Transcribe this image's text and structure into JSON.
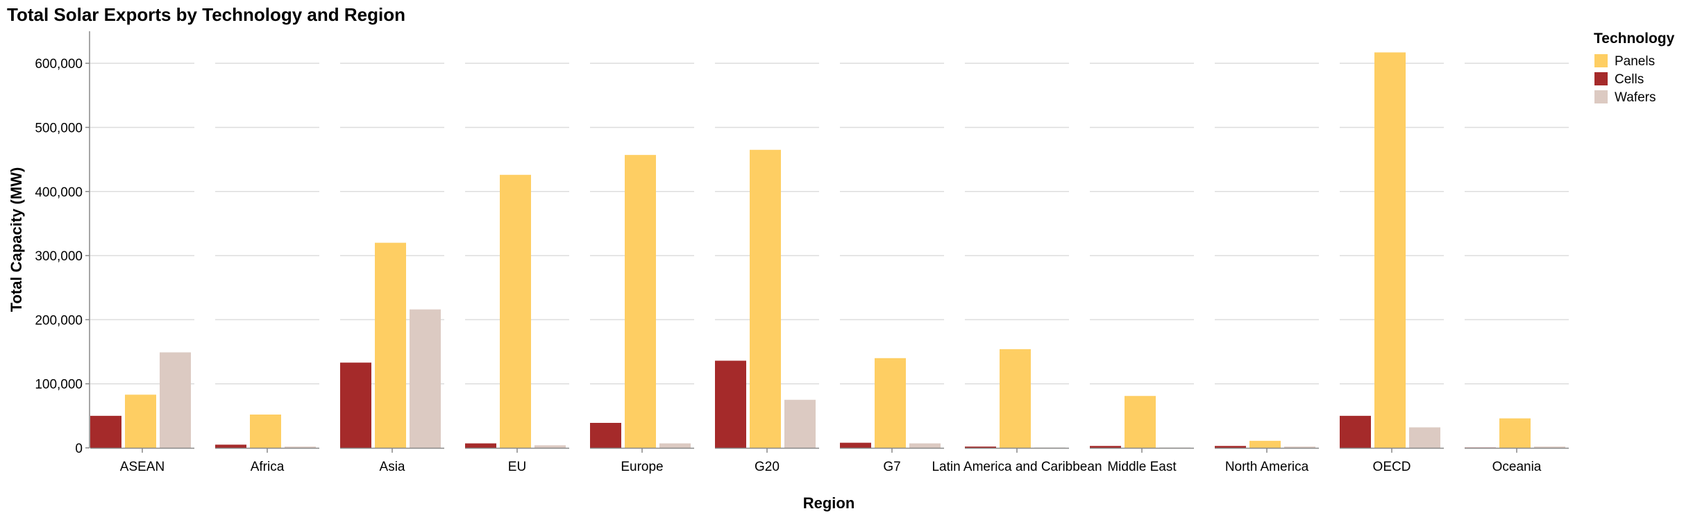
{
  "chart_data": {
    "type": "bar",
    "title": "Total Solar Exports by Technology and Region",
    "xlabel": "Region",
    "ylabel": "Total Capacity (MW)",
    "ylim": [
      0,
      650000
    ],
    "yticks": [
      0,
      100000,
      200000,
      300000,
      400000,
      500000,
      600000
    ],
    "ytick_labels": [
      "0",
      "100,000",
      "200,000",
      "300,000",
      "400,000",
      "500,000",
      "600,000"
    ],
    "grid": true,
    "legend": {
      "title": "Technology",
      "placement": "top-right"
    },
    "categories": [
      "ASEAN",
      "Africa",
      "Asia",
      "EU",
      "Europe",
      "G20",
      "G7",
      "Latin America and Caribbean",
      "Middle East",
      "North America",
      "OECD",
      "Oceania"
    ],
    "series": [
      {
        "name": "Cells",
        "color": "#a52a2a",
        "values": [
          50000,
          5000,
          133000,
          7000,
          39000,
          136000,
          8000,
          2000,
          3000,
          3000,
          50000,
          500
        ]
      },
      {
        "name": "Panels",
        "color": "#fece63",
        "values": [
          83000,
          52000,
          320000,
          426000,
          457000,
          465000,
          140000,
          154000,
          81000,
          11000,
          617000,
          46000
        ]
      },
      {
        "name": "Wafers",
        "color": "#dccac2",
        "values": [
          149000,
          2000,
          216000,
          4000,
          7000,
          75000,
          7000,
          500,
          500,
          2000,
          32000,
          2000
        ]
      }
    ],
    "legend_order": [
      "Panels",
      "Cells",
      "Wafers"
    ]
  }
}
